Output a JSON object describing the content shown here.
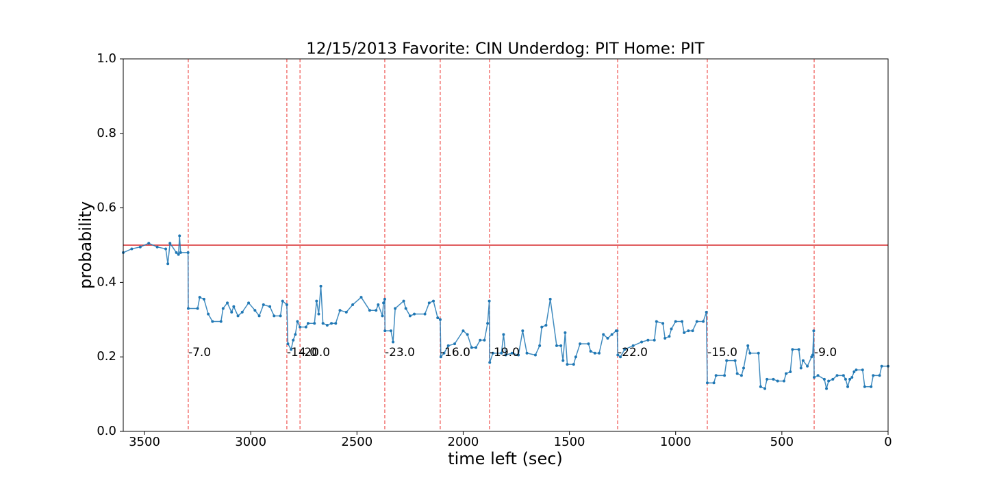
{
  "chart_data": {
    "type": "line",
    "title": "12/15/2013 Favorite: CIN Underdog: PIT Home: PIT",
    "x_label": "time left (sec)",
    "y_label": "probability",
    "xlim": [
      3600,
      0
    ],
    "ylim": [
      0,
      1
    ],
    "xticks": [
      3500,
      3000,
      2500,
      2000,
      1500,
      1000,
      500,
      0
    ],
    "yticks": [
      {
        "value": 0,
        "label": "0.0"
      },
      0.2,
      0.4,
      0.6,
      0.8,
      {
        "value": 1,
        "label": "1.0"
      }
    ],
    "hline": {
      "value": 0.5,
      "color": "#d62728"
    },
    "vline_color": "#f0605d",
    "vlines_y": 0.2,
    "vlines": [
      {
        "x": 3294,
        "label": "-7.0"
      },
      {
        "x": 2830,
        "label": "-14.0"
      },
      {
        "x": 2768,
        "label": "-20.0"
      },
      {
        "x": 2369,
        "label": "-23.0"
      },
      {
        "x": 2108,
        "label": "-16.0"
      },
      {
        "x": 1876,
        "label": "-19.0"
      },
      {
        "x": 1273,
        "label": "-22.0"
      },
      {
        "x": 851,
        "label": "-15.0"
      },
      {
        "x": 348,
        "label": "-9.0"
      }
    ],
    "series": [
      {
        "color": "#1f77b4",
        "x": [
          3600,
          3560,
          3520,
          3480,
          3440,
          3400,
          3390,
          3380,
          3350,
          3340,
          3335,
          3330,
          3295,
          3294,
          3250,
          3240,
          3220,
          3200,
          3180,
          3140,
          3130,
          3110,
          3090,
          3080,
          3060,
          3040,
          3010,
          2980,
          2960,
          2940,
          2910,
          2890,
          2860,
          2850,
          2830,
          2825,
          2810,
          2800,
          2790,
          2780,
          2768,
          2740,
          2730,
          2700,
          2690,
          2680,
          2670,
          2660,
          2640,
          2620,
          2600,
          2580,
          2550,
          2520,
          2480,
          2440,
          2410,
          2400,
          2380,
          2375,
          2369,
          2368,
          2340,
          2330,
          2320,
          2280,
          2270,
          2250,
          2230,
          2180,
          2160,
          2140,
          2120,
          2108,
          2105,
          2090,
          2070,
          2040,
          2000,
          1980,
          1960,
          1940,
          1920,
          1900,
          1885,
          1877,
          1875,
          1860,
          1820,
          1810,
          1800,
          1770,
          1740,
          1720,
          1700,
          1660,
          1640,
          1630,
          1610,
          1590,
          1560,
          1540,
          1530,
          1520,
          1510,
          1480,
          1470,
          1450,
          1410,
          1400,
          1380,
          1360,
          1340,
          1320,
          1300,
          1280,
          1275,
          1272,
          1260,
          1240,
          1200,
          1160,
          1130,
          1100,
          1090,
          1060,
          1050,
          1030,
          1020,
          1000,
          970,
          960,
          940,
          920,
          900,
          870,
          855,
          851,
          820,
          810,
          770,
          760,
          720,
          710,
          690,
          680,
          660,
          650,
          610,
          600,
          580,
          570,
          540,
          520,
          490,
          480,
          460,
          450,
          420,
          410,
          400,
          380,
          360,
          355,
          350,
          348,
          330,
          300,
          290,
          280,
          260,
          240,
          210,
          200,
          190,
          180,
          170,
          160,
          150,
          120,
          110,
          80,
          70,
          40,
          30,
          0
        ],
        "values": [
          0.48,
          0.49,
          0.495,
          0.505,
          0.495,
          0.49,
          0.45,
          0.505,
          0.48,
          0.475,
          0.525,
          0.48,
          0.48,
          0.33,
          0.33,
          0.36,
          0.355,
          0.315,
          0.295,
          0.295,
          0.33,
          0.345,
          0.32,
          0.335,
          0.31,
          0.32,
          0.345,
          0.325,
          0.31,
          0.34,
          0.335,
          0.31,
          0.31,
          0.35,
          0.34,
          0.235,
          0.22,
          0.245,
          0.26,
          0.295,
          0.28,
          0.28,
          0.29,
          0.29,
          0.35,
          0.315,
          0.39,
          0.29,
          0.285,
          0.29,
          0.29,
          0.325,
          0.32,
          0.34,
          0.36,
          0.325,
          0.325,
          0.34,
          0.31,
          0.345,
          0.355,
          0.27,
          0.27,
          0.24,
          0.33,
          0.35,
          0.33,
          0.31,
          0.315,
          0.315,
          0.345,
          0.35,
          0.305,
          0.3,
          0.2,
          0.21,
          0.23,
          0.235,
          0.27,
          0.26,
          0.225,
          0.225,
          0.245,
          0.245,
          0.29,
          0.35,
          0.185,
          0.21,
          0.21,
          0.26,
          0.205,
          0.21,
          0.205,
          0.27,
          0.21,
          0.205,
          0.23,
          0.28,
          0.285,
          0.355,
          0.23,
          0.23,
          0.19,
          0.265,
          0.18,
          0.18,
          0.2,
          0.235,
          0.235,
          0.215,
          0.21,
          0.21,
          0.26,
          0.25,
          0.26,
          0.27,
          0.27,
          0.205,
          0.2,
          0.22,
          0.23,
          0.24,
          0.245,
          0.245,
          0.295,
          0.29,
          0.25,
          0.255,
          0.275,
          0.295,
          0.295,
          0.265,
          0.27,
          0.27,
          0.295,
          0.295,
          0.32,
          0.13,
          0.13,
          0.15,
          0.15,
          0.19,
          0.19,
          0.155,
          0.15,
          0.17,
          0.23,
          0.21,
          0.21,
          0.12,
          0.115,
          0.14,
          0.14,
          0.135,
          0.135,
          0.155,
          0.16,
          0.22,
          0.22,
          0.17,
          0.19,
          0.175,
          0.2,
          0.205,
          0.27,
          0.145,
          0.15,
          0.14,
          0.115,
          0.135,
          0.14,
          0.15,
          0.15,
          0.14,
          0.12,
          0.14,
          0.145,
          0.16,
          0.165,
          0.165,
          0.12,
          0.12,
          0.15,
          0.15,
          0.175,
          0.175
        ]
      }
    ]
  }
}
